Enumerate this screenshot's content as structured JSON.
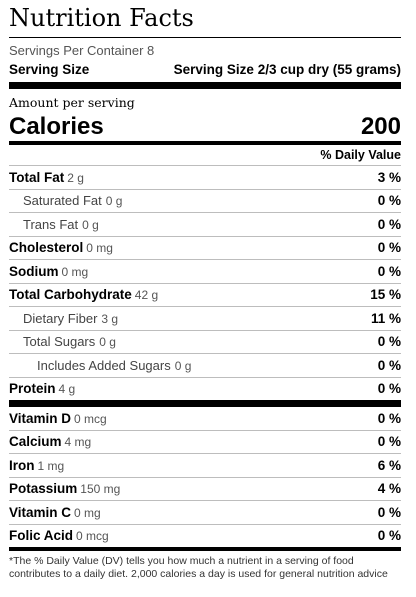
{
  "label": {
    "title": "Nutrition Facts",
    "servings_per_container": "Servings Per Container 8",
    "serving_size_label": "Serving Size",
    "serving_size_value": "Serving Size 2/3 cup dry (55 grams)",
    "amount_per_serving": "Amount per serving",
    "calories_label": "Calories",
    "calories_value": "200",
    "daily_value_header": "% Daily Value"
  },
  "nutrients": {
    "total_fat": {
      "name": "Total Fat",
      "amount": "2 g",
      "dv": "3 %"
    },
    "saturated_fat": {
      "name": "Saturated Fat",
      "amount": "0 g",
      "dv": "0 %"
    },
    "trans_fat": {
      "name": "Trans Fat",
      "amount": "0 g",
      "dv": "0 %"
    },
    "cholesterol": {
      "name": "Cholesterol",
      "amount": "0 mg",
      "dv": "0 %"
    },
    "sodium": {
      "name": "Sodium",
      "amount": "0 mg",
      "dv": "0 %"
    },
    "total_carbohydrate": {
      "name": "Total Carbohydrate",
      "amount": "42 g",
      "dv": "15 %"
    },
    "dietary_fiber": {
      "name": "Dietary Fiber",
      "amount": "3 g",
      "dv": "11 %"
    },
    "total_sugars": {
      "name": "Total Sugars",
      "amount": "0 g",
      "dv": "0 %"
    },
    "added_sugars": {
      "name": "Includes Added Sugars",
      "amount": "0 g",
      "dv": "0 %"
    },
    "protein": {
      "name": "Protein",
      "amount": "4 g",
      "dv": "0 %"
    }
  },
  "vitamins": {
    "vitamin_d": {
      "name": "Vitamin D",
      "amount": "0 mcg",
      "dv": "0 %"
    },
    "calcium": {
      "name": "Calcium",
      "amount": "4 mg",
      "dv": "0 %"
    },
    "iron": {
      "name": "Iron",
      "amount": "1 mg",
      "dv": "6 %"
    },
    "potassium": {
      "name": "Potassium",
      "amount": "150 mg",
      "dv": "4 %"
    },
    "vitamin_c": {
      "name": "Vitamin C",
      "amount": "0 mg",
      "dv": "0 %"
    },
    "folic_acid": {
      "name": "Folic Acid",
      "amount": "0 mcg",
      "dv": "0 %"
    }
  },
  "footnote": "*The % Daily Value (DV) tells you how much a nutrient in a serving of food contributes to a daily diet. 2,000 calories a day is used for general nutrition advice"
}
